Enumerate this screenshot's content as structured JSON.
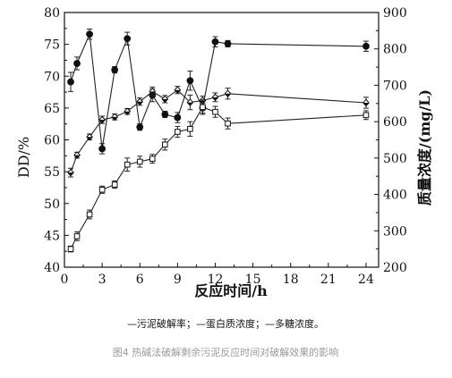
{
  "chart_data": {
    "type": "line",
    "xlabel": "反应时间/h",
    "ylabel_left": "DD/%",
    "ylabel_right": "质量浓度/(mg/L)",
    "xlim": [
      0,
      25
    ],
    "ylim_left": [
      40,
      80
    ],
    "ylim_right": [
      200,
      900
    ],
    "x_ticks": [
      0,
      3,
      6,
      9,
      12,
      15,
      18,
      21,
      24
    ],
    "y_left_ticks": [
      40,
      45,
      50,
      55,
      60,
      65,
      70,
      75,
      80
    ],
    "y_right_ticks": [
      200,
      300,
      400,
      500,
      600,
      700,
      800,
      900
    ],
    "legend_text": "—污泥破解率；—蛋白质浓度；—多糖浓度。",
    "caption": "图4 热碱法破解剩余污泥反应时间对破解效果的影响",
    "series": [
      {
        "marker": "filled-circle",
        "axis": "left",
        "x": [
          0.5,
          1,
          2,
          3,
          4,
          5,
          6,
          7,
          8,
          9,
          10,
          11,
          12,
          13,
          24
        ],
        "y": [
          69.1,
          72.0,
          76.6,
          58.6,
          71.0,
          75.9,
          62.0,
          67.0,
          64.0,
          63.5,
          69.3,
          65.0,
          75.4,
          75.1,
          74.7
        ],
        "err": [
          1.5,
          1.0,
          0.8,
          0.8,
          0.5,
          1.0,
          0.5,
          1.0,
          0.5,
          0.8,
          1.5,
          0.8,
          0.8,
          0.5,
          0.8
        ]
      },
      {
        "marker": "half-filled-diamond",
        "axis": "right",
        "x": [
          0.5,
          1,
          2,
          3,
          4,
          5,
          6,
          7,
          8,
          9,
          10,
          11,
          12,
          13,
          24
        ],
        "y": [
          460,
          508,
          558,
          605,
          613,
          628,
          655,
          683,
          662,
          687,
          653,
          658,
          667,
          677,
          652
        ],
        "err": [
          12,
          8,
          8,
          10,
          8,
          8,
          10,
          12,
          10,
          10,
          20,
          12,
          12,
          15,
          15
        ]
      },
      {
        "marker": "open-square",
        "axis": "right",
        "x": [
          0.5,
          1,
          2,
          3,
          4,
          5,
          6,
          7,
          8,
          9,
          10,
          11,
          12,
          13,
          24
        ],
        "y": [
          250,
          285,
          345,
          413,
          427,
          482,
          490,
          498,
          537,
          572,
          580,
          640,
          627,
          595,
          618
        ],
        "err": [
          8,
          12,
          12,
          10,
          10,
          18,
          15,
          12,
          15,
          15,
          20,
          20,
          15,
          15,
          12
        ]
      }
    ]
  }
}
